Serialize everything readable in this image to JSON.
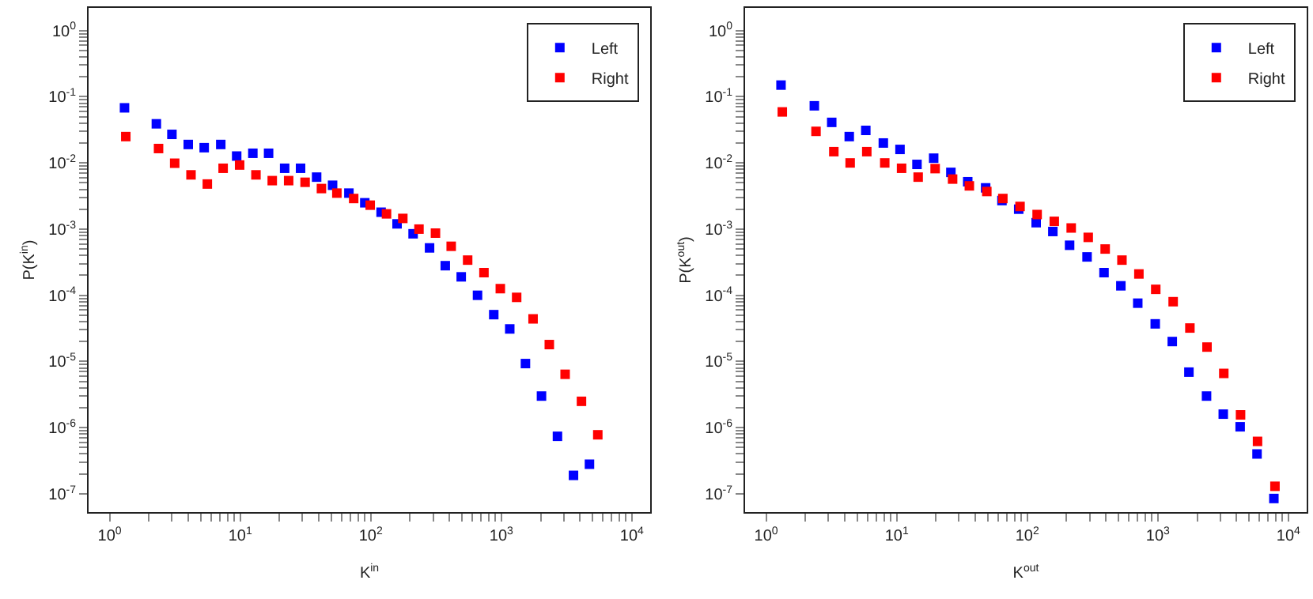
{
  "chart_data": [
    {
      "type": "scatter",
      "xlabel": "K$^{in}$",
      "ylabel": "P(K$^{in}$)",
      "log": "xy",
      "grid": false,
      "legend": "top right",
      "marker": "square",
      "xlim": [
        0.69,
        13800
      ],
      "ylim": [
        5.3e-08,
        2.2
      ],
      "xticks": [
        {
          "value": 1,
          "label": "10$^{0}$"
        },
        {
          "value": 2,
          "label": null
        },
        {
          "value": 3,
          "label": null
        },
        {
          "value": 4,
          "label": null
        },
        {
          "value": 5,
          "label": null
        },
        {
          "value": 6,
          "label": null
        },
        {
          "value": 7,
          "label": null
        },
        {
          "value": 8,
          "label": null
        },
        {
          "value": 9,
          "label": null
        },
        {
          "value": 10,
          "label": "10$^{1}$"
        },
        {
          "value": 20,
          "label": null
        },
        {
          "value": 30,
          "label": null
        },
        {
          "value": 40,
          "label": null
        },
        {
          "value": 50,
          "label": null
        },
        {
          "value": 60,
          "label": null
        },
        {
          "value": 70,
          "label": null
        },
        {
          "value": 80,
          "label": null
        },
        {
          "value": 90,
          "label": null
        },
        {
          "value": 100,
          "label": "10$^{2}$"
        },
        {
          "value": 200,
          "label": null
        },
        {
          "value": 300,
          "label": null
        },
        {
          "value": 400,
          "label": null
        },
        {
          "value": 500,
          "label": null
        },
        {
          "value": 600,
          "label": null
        },
        {
          "value": 700,
          "label": null
        },
        {
          "value": 800,
          "label": null
        },
        {
          "value": 900,
          "label": null
        },
        {
          "value": 1000,
          "label": "10$^{3}$"
        },
        {
          "value": 2000,
          "label": null
        },
        {
          "value": 3000,
          "label": null
        },
        {
          "value": 4000,
          "label": null
        },
        {
          "value": 5000,
          "label": null
        },
        {
          "value": 6000,
          "label": null
        },
        {
          "value": 7000,
          "label": null
        },
        {
          "value": 8000,
          "label": null
        },
        {
          "value": 9000,
          "label": null
        },
        {
          "value": 10000,
          "label": "10$^{4}$"
        }
      ],
      "yticks": [
        {
          "value": 1e-07,
          "label": "10$^{-7}$"
        },
        {
          "value": 2e-07,
          "label": null
        },
        {
          "value": 3e-07,
          "label": null
        },
        {
          "value": 4e-07,
          "label": null
        },
        {
          "value": 5e-07,
          "label": null
        },
        {
          "value": 6e-07,
          "label": null
        },
        {
          "value": 7e-07,
          "label": null
        },
        {
          "value": 8e-07,
          "label": null
        },
        {
          "value": 9e-07,
          "label": null
        },
        {
          "value": 1e-06,
          "label": "10$^{-6}$"
        },
        {
          "value": 2e-06,
          "label": null
        },
        {
          "value": 3e-06,
          "label": null
        },
        {
          "value": 4e-06,
          "label": null
        },
        {
          "value": 5e-06,
          "label": null
        },
        {
          "value": 6e-06,
          "label": null
        },
        {
          "value": 7e-06,
          "label": null
        },
        {
          "value": 8e-06,
          "label": null
        },
        {
          "value": 9e-06,
          "label": null
        },
        {
          "value": 1e-05,
          "label": "10$^{-5}$"
        },
        {
          "value": 2e-05,
          "label": null
        },
        {
          "value": 3e-05,
          "label": null
        },
        {
          "value": 4e-05,
          "label": null
        },
        {
          "value": 5e-05,
          "label": null
        },
        {
          "value": 6e-05,
          "label": null
        },
        {
          "value": 7e-05,
          "label": null
        },
        {
          "value": 8e-05,
          "label": null
        },
        {
          "value": 9e-05,
          "label": null
        },
        {
          "value": 0.0001,
          "label": "10$^{-4}$"
        },
        {
          "value": 0.0002,
          "label": null
        },
        {
          "value": 0.0003,
          "label": null
        },
        {
          "value": 0.0004,
          "label": null
        },
        {
          "value": 0.0005,
          "label": null
        },
        {
          "value": 0.0006,
          "label": null
        },
        {
          "value": 0.0007,
          "label": null
        },
        {
          "value": 0.0008,
          "label": null
        },
        {
          "value": 0.0009,
          "label": null
        },
        {
          "value": 0.001,
          "label": "10$^{-3}$"
        },
        {
          "value": 0.002,
          "label": null
        },
        {
          "value": 0.003,
          "label": null
        },
        {
          "value": 0.004,
          "label": null
        },
        {
          "value": 0.005,
          "label": null
        },
        {
          "value": 0.006,
          "label": null
        },
        {
          "value": 0.007,
          "label": null
        },
        {
          "value": 0.008,
          "label": null
        },
        {
          "value": 0.009,
          "label": null
        },
        {
          "value": 0.01,
          "label": "10$^{-2}$"
        },
        {
          "value": 0.02,
          "label": null
        },
        {
          "value": 0.03,
          "label": null
        },
        {
          "value": 0.04,
          "label": null
        },
        {
          "value": 0.05,
          "label": null
        },
        {
          "value": 0.06,
          "label": null
        },
        {
          "value": 0.07,
          "label": null
        },
        {
          "value": 0.08,
          "label": null
        },
        {
          "value": 0.09,
          "label": null
        },
        {
          "value": 0.1,
          "label": "10$^{-1}$"
        },
        {
          "value": 0.2,
          "label": null
        },
        {
          "value": 0.3,
          "label": null
        },
        {
          "value": 0.4,
          "label": null
        },
        {
          "value": 0.5,
          "label": null
        },
        {
          "value": 0.6,
          "label": null
        },
        {
          "value": 0.7,
          "label": null
        },
        {
          "value": 0.8,
          "label": null
        },
        {
          "value": 0.9,
          "label": null
        },
        {
          "value": 1,
          "label": "10$^{0}$"
        }
      ],
      "series": [
        {
          "name": "Left",
          "color": "#0000ff",
          "x": [
            1.3,
            2.28,
            3.0,
            4.0,
            5.3,
            7.1,
            9.4,
            12.5,
            16.5,
            21.9,
            29,
            38.5,
            51,
            68,
            90,
            120,
            159,
            211,
            282,
            372,
            493,
            657,
            875,
            1160,
            1530,
            2030,
            2690,
            3570,
            4730
          ],
          "values": [
            0.068,
            0.039,
            0.027,
            0.019,
            0.017,
            0.019,
            0.0127,
            0.014,
            0.014,
            0.0083,
            0.0083,
            0.0061,
            0.0046,
            0.0035,
            0.0025,
            0.0018,
            0.0012,
            0.00085,
            0.00052,
            0.00028,
            0.00019,
            0.0001,
            5.1e-05,
            3.1e-05,
            9.3e-06,
            3e-06,
            7.4e-07,
            1.9e-07,
            2.8e-07
          ]
        },
        {
          "name": "Right",
          "color": "#ff0000",
          "x": [
            1.33,
            2.37,
            3.15,
            4.2,
            5.6,
            7.4,
            9.9,
            13.2,
            17.6,
            23.5,
            31.4,
            41.9,
            55,
            74,
            99,
            132,
            176,
            234,
            313,
            413,
            552,
            736,
            982,
            1310,
            1750,
            2330,
            3080,
            4110,
            5480
          ],
          "values": [
            0.025,
            0.0165,
            0.0099,
            0.0066,
            0.0048,
            0.0083,
            0.0093,
            0.0066,
            0.0054,
            0.0054,
            0.0051,
            0.0041,
            0.0035,
            0.0029,
            0.0023,
            0.0017,
            0.00145,
            0.001,
            0.00087,
            0.00055,
            0.00034,
            0.00022,
            0.000126,
            9.3e-05,
            4.4e-05,
            1.8e-05,
            6.4e-06,
            2.5e-06,
            7.8e-07
          ]
        }
      ]
    },
    {
      "type": "scatter",
      "xlabel": "K$^{out}$",
      "ylabel": "P(K$^{out}$)",
      "log": "xy",
      "grid": false,
      "legend": "top right",
      "marker": "square",
      "xlim": [
        0.69,
        13800
      ],
      "ylim": [
        5.3e-08,
        2.2
      ],
      "xticks": [
        {
          "value": 1,
          "label": "10$^{0}$"
        },
        {
          "value": 2,
          "label": null
        },
        {
          "value": 3,
          "label": null
        },
        {
          "value": 4,
          "label": null
        },
        {
          "value": 5,
          "label": null
        },
        {
          "value": 6,
          "label": null
        },
        {
          "value": 7,
          "label": null
        },
        {
          "value": 8,
          "label": null
        },
        {
          "value": 9,
          "label": null
        },
        {
          "value": 10,
          "label": "10$^{1}$"
        },
        {
          "value": 20,
          "label": null
        },
        {
          "value": 30,
          "label": null
        },
        {
          "value": 40,
          "label": null
        },
        {
          "value": 50,
          "label": null
        },
        {
          "value": 60,
          "label": null
        },
        {
          "value": 70,
          "label": null
        },
        {
          "value": 80,
          "label": null
        },
        {
          "value": 90,
          "label": null
        },
        {
          "value": 100,
          "label": "10$^{2}$"
        },
        {
          "value": 200,
          "label": null
        },
        {
          "value": 300,
          "label": null
        },
        {
          "value": 400,
          "label": null
        },
        {
          "value": 500,
          "label": null
        },
        {
          "value": 600,
          "label": null
        },
        {
          "value": 700,
          "label": null
        },
        {
          "value": 800,
          "label": null
        },
        {
          "value": 900,
          "label": null
        },
        {
          "value": 1000,
          "label": "10$^{3}$"
        },
        {
          "value": 2000,
          "label": null
        },
        {
          "value": 3000,
          "label": null
        },
        {
          "value": 4000,
          "label": null
        },
        {
          "value": 5000,
          "label": null
        },
        {
          "value": 6000,
          "label": null
        },
        {
          "value": 7000,
          "label": null
        },
        {
          "value": 8000,
          "label": null
        },
        {
          "value": 9000,
          "label": null
        },
        {
          "value": 10000,
          "label": "10$^{4}$"
        }
      ],
      "yticks": [
        {
          "value": 1e-07,
          "label": "10$^{-7}$"
        },
        {
          "value": 2e-07,
          "label": null
        },
        {
          "value": 3e-07,
          "label": null
        },
        {
          "value": 4e-07,
          "label": null
        },
        {
          "value": 5e-07,
          "label": null
        },
        {
          "value": 6e-07,
          "label": null
        },
        {
          "value": 7e-07,
          "label": null
        },
        {
          "value": 8e-07,
          "label": null
        },
        {
          "value": 9e-07,
          "label": null
        },
        {
          "value": 1e-06,
          "label": "10$^{-6}$"
        },
        {
          "value": 2e-06,
          "label": null
        },
        {
          "value": 3e-06,
          "label": null
        },
        {
          "value": 4e-06,
          "label": null
        },
        {
          "value": 5e-06,
          "label": null
        },
        {
          "value": 6e-06,
          "label": null
        },
        {
          "value": 7e-06,
          "label": null
        },
        {
          "value": 8e-06,
          "label": null
        },
        {
          "value": 9e-06,
          "label": null
        },
        {
          "value": 1e-05,
          "label": "10$^{-5}$"
        },
        {
          "value": 2e-05,
          "label": null
        },
        {
          "value": 3e-05,
          "label": null
        },
        {
          "value": 4e-05,
          "label": null
        },
        {
          "value": 5e-05,
          "label": null
        },
        {
          "value": 6e-05,
          "label": null
        },
        {
          "value": 7e-05,
          "label": null
        },
        {
          "value": 8e-05,
          "label": null
        },
        {
          "value": 9e-05,
          "label": null
        },
        {
          "value": 0.0001,
          "label": "10$^{-4}$"
        },
        {
          "value": 0.0002,
          "label": null
        },
        {
          "value": 0.0003,
          "label": null
        },
        {
          "value": 0.0004,
          "label": null
        },
        {
          "value": 0.0005,
          "label": null
        },
        {
          "value": 0.0006,
          "label": null
        },
        {
          "value": 0.0007,
          "label": null
        },
        {
          "value": 0.0008,
          "label": null
        },
        {
          "value": 0.0009,
          "label": null
        },
        {
          "value": 0.001,
          "label": "10$^{-3}$"
        },
        {
          "value": 0.002,
          "label": null
        },
        {
          "value": 0.003,
          "label": null
        },
        {
          "value": 0.004,
          "label": null
        },
        {
          "value": 0.005,
          "label": null
        },
        {
          "value": 0.006,
          "label": null
        },
        {
          "value": 0.007,
          "label": null
        },
        {
          "value": 0.008,
          "label": null
        },
        {
          "value": 0.009,
          "label": null
        },
        {
          "value": 0.01,
          "label": "10$^{-2}$"
        },
        {
          "value": 0.02,
          "label": null
        },
        {
          "value": 0.03,
          "label": null
        },
        {
          "value": 0.04,
          "label": null
        },
        {
          "value": 0.05,
          "label": null
        },
        {
          "value": 0.06,
          "label": null
        },
        {
          "value": 0.07,
          "label": null
        },
        {
          "value": 0.08,
          "label": null
        },
        {
          "value": 0.09,
          "label": null
        },
        {
          "value": 0.1,
          "label": "10$^{-1}$"
        },
        {
          "value": 0.2,
          "label": null
        },
        {
          "value": 0.3,
          "label": null
        },
        {
          "value": 0.4,
          "label": null
        },
        {
          "value": 0.5,
          "label": null
        },
        {
          "value": 0.6,
          "label": null
        },
        {
          "value": 0.7,
          "label": null
        },
        {
          "value": 0.8,
          "label": null
        },
        {
          "value": 0.9,
          "label": null
        },
        {
          "value": 1,
          "label": "10$^{0}$"
        }
      ],
      "series": [
        {
          "name": "Left",
          "color": "#0000ff",
          "x": [
            1.3,
            2.34,
            3.18,
            4.33,
            5.8,
            7.9,
            10.6,
            14.3,
            19.2,
            26,
            35,
            48,
            64,
            86,
            117,
            157,
            211,
            287,
            387,
            521,
            702,
            955,
            1290,
            1730,
            2360,
            3170,
            4270,
            5750,
            7740
          ],
          "values": [
            0.15,
            0.073,
            0.041,
            0.025,
            0.031,
            0.02,
            0.016,
            0.0095,
            0.0118,
            0.0072,
            0.0052,
            0.0042,
            0.0027,
            0.002,
            0.00125,
            0.00092,
            0.00057,
            0.00038,
            0.00022,
            0.000139,
            7.6e-05,
            3.7e-05,
            2e-05,
            6.9e-06,
            3e-06,
            1.6e-06,
            1.03e-06,
            4e-07,
            8.5e-08
          ]
        },
        {
          "name": "Right",
          "color": "#ff0000",
          "x": [
            1.33,
            2.41,
            3.3,
            4.4,
            5.9,
            8.1,
            10.9,
            14.6,
            19.7,
            26.8,
            36,
            49,
            65,
            88,
            119,
            161,
            217,
            293,
            395,
            531,
            716,
            964,
            1310,
            1760,
            2380,
            3200,
            4300,
            5800,
            7890
          ],
          "values": [
            0.059,
            0.03,
            0.0148,
            0.01,
            0.0148,
            0.01,
            0.0083,
            0.0061,
            0.0082,
            0.0057,
            0.0045,
            0.0037,
            0.0029,
            0.0022,
            0.00166,
            0.00131,
            0.00104,
            0.00075,
            0.0005,
            0.00034,
            0.00021,
            0.000123,
            8e-05,
            3.2e-05,
            1.65e-05,
            6.6e-06,
            1.56e-06,
            6.2e-07,
            1.3e-07
          ]
        }
      ]
    }
  ]
}
